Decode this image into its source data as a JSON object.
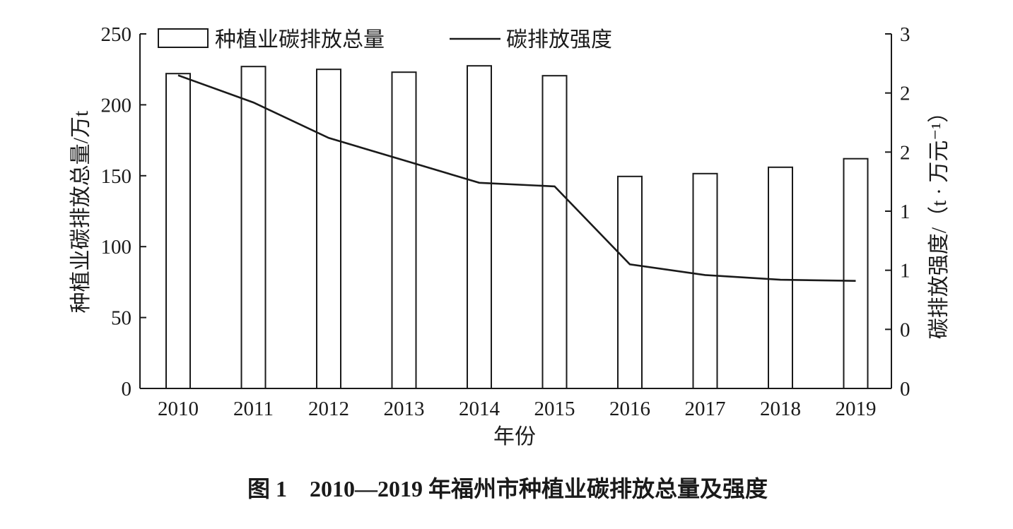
{
  "caption": "图 1　2010—2019 年福州市种植业碳排放总量及强度",
  "chart_data": {
    "type": "bar",
    "title": "",
    "categories": [
      "2010",
      "2011",
      "2012",
      "2013",
      "2014",
      "2015",
      "2016",
      "2017",
      "2018",
      "2019"
    ],
    "xlabel": "年份",
    "ylabel": "种植业碳排放总量/万t",
    "ylabel_right": "碳排放强度/（t · 万元⁻¹）",
    "ylim": [
      0,
      250
    ],
    "yticks": [
      "0",
      "50",
      "100",
      "150",
      "200",
      "250"
    ],
    "ylim_right": [
      0,
      3
    ],
    "yticks_right": [
      "0",
      "0",
      "1",
      "1",
      "2",
      "2",
      "3"
    ],
    "legend_position": "top",
    "grid": false,
    "series": [
      {
        "name": "种植业碳排放总量",
        "type": "bar",
        "axis": "left",
        "values": [
          222,
          227,
          225,
          223,
          227.5,
          220.5,
          149.5,
          151.5,
          156,
          162
        ]
      },
      {
        "name": "碳排放强度",
        "type": "line",
        "axis": "right",
        "values": [
          2.65,
          2.42,
          2.12,
          1.93,
          1.74,
          1.71,
          1.05,
          0.96,
          0.92,
          0.91
        ]
      }
    ]
  }
}
